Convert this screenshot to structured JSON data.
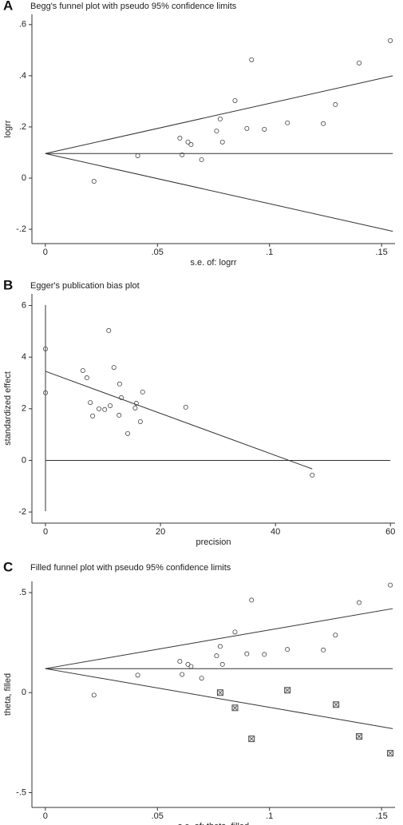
{
  "chart_data": [
    {
      "type": "scatter",
      "panel_label": "A",
      "title": "Begg's funnel plot with pseudo 95% confidence limits",
      "xlabel": "s.e. of: logrr",
      "ylabel": "logrr",
      "xlim": [
        -0.006,
        0.156
      ],
      "ylim": [
        -0.256,
        0.64
      ],
      "xticks": [
        0,
        {
          "value": 0.05,
          "label": ".05"
        },
        {
          "value": 0.1,
          "label": ".1"
        },
        {
          "value": 0.15,
          "label": ".15"
        }
      ],
      "yticks": [
        {
          "value": -0.2,
          "label": "-.2"
        },
        0,
        {
          "value": 0.2,
          "label": ".2"
        },
        {
          "value": 0.4,
          "label": ".4"
        },
        {
          "value": 0.6,
          "label": ".6"
        }
      ],
      "series": [
        {
          "marker": "circle",
          "x": [
            0.0217,
            0.0412,
            0.06,
            0.061,
            0.0636,
            0.065,
            0.0697,
            0.0764,
            0.078,
            0.079,
            0.0846,
            0.0899,
            0.092,
            0.0977,
            0.108,
            0.124,
            0.1294,
            0.14,
            0.1539
          ],
          "y": [
            -0.0125,
            0.0875,
            0.156,
            0.091,
            0.141,
            0.131,
            0.072,
            0.184,
            0.231,
            0.141,
            0.303,
            0.194,
            0.4625,
            0.191,
            0.216,
            0.213,
            0.2875,
            0.45,
            0.5375
          ]
        }
      ],
      "lines": [
        {
          "x": [
            0,
            0.155
          ],
          "y": [
            0.096,
            0.096
          ]
        },
        {
          "x": [
            0,
            0.155
          ],
          "y": [
            0.096,
            0.4
          ]
        },
        {
          "x": [
            0,
            0.155
          ],
          "y": [
            0.096,
            -0.208
          ]
        }
      ]
    },
    {
      "type": "scatter",
      "panel_label": "B",
      "title": "Egger's publication bias plot",
      "xlabel": "precision",
      "ylabel": "standardized effect",
      "xlim": [
        -2.36,
        60.8
      ],
      "ylim": [
        -2.43,
        6.45
      ],
      "xticks": [
        0,
        20,
        40,
        60
      ],
      "yticks": [
        -2,
        0,
        2,
        4,
        6
      ],
      "series": [
        {
          "marker": "circle",
          "x": [
            0,
            0,
            6.5,
            7.2,
            7.8,
            8.2,
            9.3,
            10.3,
            11.0,
            11.25,
            11.9,
            12.8,
            12.9,
            13.2,
            14.3,
            15.6,
            15.8,
            16.5,
            16.9,
            24.4,
            46.4
          ],
          "y": [
            4.32,
            2.62,
            3.48,
            3.2,
            2.24,
            1.72,
            2.0,
            1.97,
            5.03,
            2.12,
            3.6,
            1.75,
            2.96,
            2.43,
            1.04,
            2.03,
            2.21,
            1.5,
            2.65,
            2.06,
            -0.57
          ]
        }
      ],
      "lines": [
        {
          "x": [
            0,
            60
          ],
          "y": [
            0,
            0
          ]
        },
        {
          "x": [
            0,
            46.4
          ],
          "y": [
            3.45,
            -0.33
          ]
        },
        {
          "x": [
            0,
            0
          ],
          "y": [
            -1.97,
            6.02
          ]
        }
      ]
    },
    {
      "type": "scatter",
      "panel_label": "C",
      "title": "Filled funnel plot with pseudo 95% confidence limits",
      "xlabel": "s.e. of: theta, filled",
      "ylabel": "theta, filled",
      "xlim": [
        -0.006,
        0.156
      ],
      "ylim": [
        -0.574,
        0.556
      ],
      "xticks": [
        0,
        {
          "value": 0.05,
          "label": ".05"
        },
        {
          "value": 0.1,
          "label": ".1"
        },
        {
          "value": 0.15,
          "label": ".15"
        }
      ],
      "yticks": [
        {
          "value": -0.5,
          "label": "-.5"
        },
        0,
        {
          "value": 0.5,
          "label": ".5"
        }
      ],
      "series": [
        {
          "marker": "circle",
          "x": [
            0.0217,
            0.0412,
            0.06,
            0.061,
            0.0636,
            0.065,
            0.0697,
            0.0764,
            0.078,
            0.079,
            0.0846,
            0.0899,
            0.092,
            0.0977,
            0.108,
            0.124,
            0.1294,
            0.14,
            0.1539
          ],
          "y": [
            -0.0125,
            0.0875,
            0.156,
            0.091,
            0.141,
            0.131,
            0.072,
            0.184,
            0.231,
            0.141,
            0.303,
            0.194,
            0.4625,
            0.191,
            0.216,
            0.213,
            0.2875,
            0.45,
            0.5375
          ]
        },
        {
          "marker": "square",
          "x": [
            0.078,
            0.0846,
            0.092,
            0.108,
            0.1297,
            0.14,
            0.1539
          ],
          "y": [
            0.0,
            -0.076,
            -0.231,
            0.012,
            -0.06,
            -0.219,
            -0.303
          ]
        }
      ],
      "lines": [
        {
          "x": [
            0,
            0.155
          ],
          "y": [
            0.12,
            0.12
          ]
        },
        {
          "x": [
            0,
            0.155
          ],
          "y": [
            0.12,
            0.42
          ]
        },
        {
          "x": [
            0,
            0.155
          ],
          "y": [
            0.12,
            -0.18
          ]
        }
      ]
    }
  ]
}
